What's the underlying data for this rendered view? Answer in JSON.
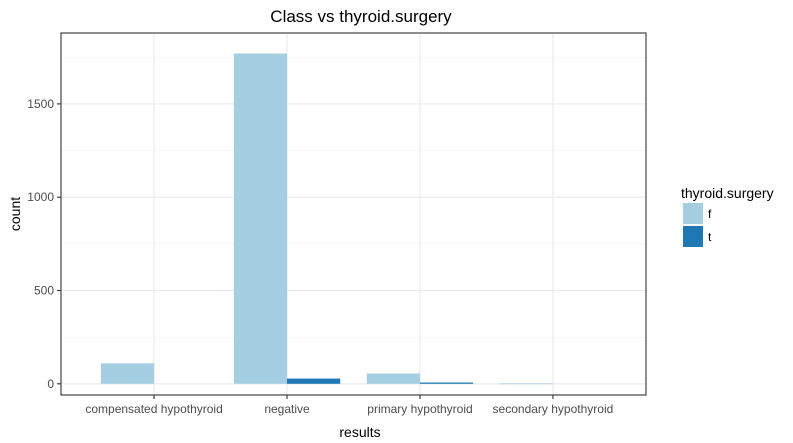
{
  "chart_data": {
    "type": "bar",
    "title": "Class vs thyroid.surgery",
    "xlabel": "results",
    "ylabel": "count",
    "categories": [
      "compensated hypothyroid",
      "negative",
      "primary hypothyroid",
      "secondary hypothyroid"
    ],
    "series": [
      {
        "name": "f",
        "color": "#a6cee3",
        "values": [
          110,
          1770,
          55,
          2
        ]
      },
      {
        "name": "t",
        "color": "#1f78b4",
        "values": [
          null,
          28,
          7,
          null
        ]
      }
    ],
    "ylim": [
      -60,
      1880
    ],
    "yticks": [
      0,
      500,
      1000,
      1500
    ],
    "grid": true,
    "legend_title": "thyroid.surgery",
    "legend_position": "right"
  }
}
